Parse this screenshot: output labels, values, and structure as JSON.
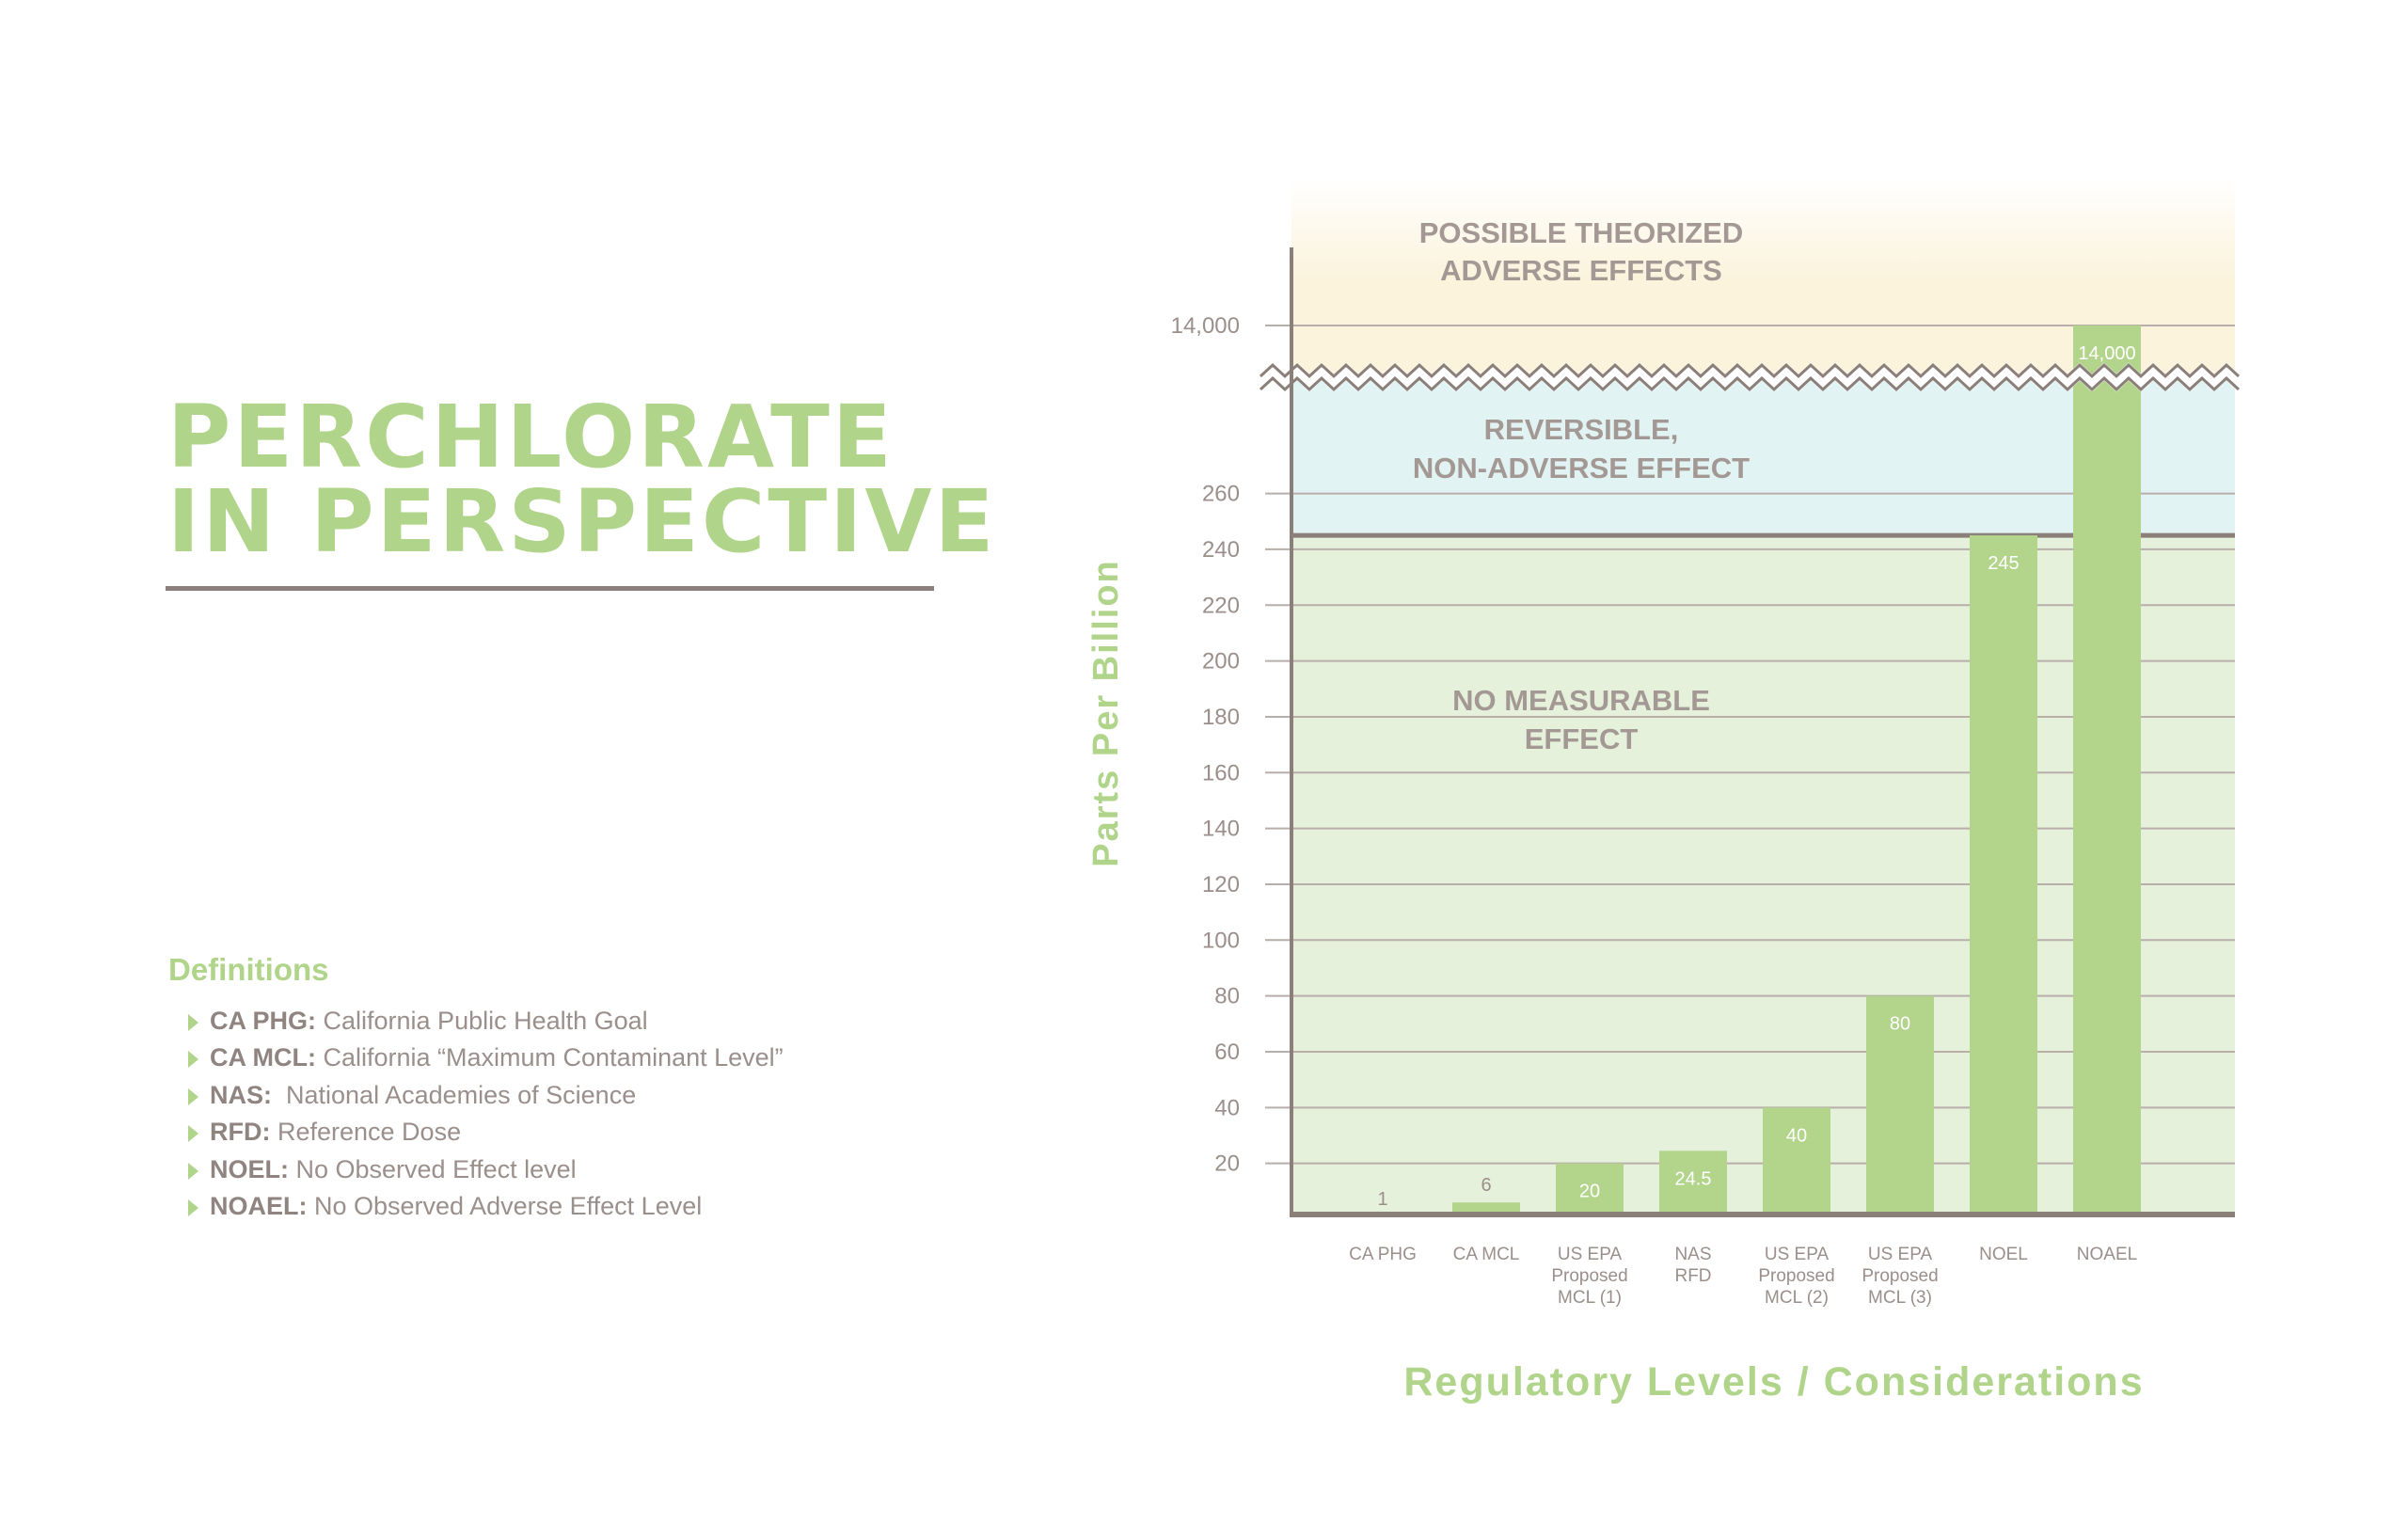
{
  "title": {
    "line1": "PERCHLORATE",
    "line2": "IN PERSPECTIVE"
  },
  "definitions": {
    "heading": "Definitions",
    "items": [
      {
        "term": "CA PHG:",
        "text": " California Public Health Goal"
      },
      {
        "term": "CA MCL:",
        "text": " California “Maximum Contaminant Level”"
      },
      {
        "term": "NAS:",
        "text": "  National Academies of Science"
      },
      {
        "term": "RFD:",
        "text": " Reference Dose"
      },
      {
        "term": "NOEL:",
        "text": " No Observed Effect level"
      },
      {
        "term": "NOAEL:",
        "text": " No Observed Adverse Effect Level"
      }
    ]
  },
  "colors": {
    "green": "#afd48a",
    "bar": "#b2d58b",
    "gray": "#9a8f8a",
    "axis": "#8b7f7a",
    "zone_green": "#e6f1dc",
    "zone_blue": "#e1f3f3",
    "zone_yellow": "#fbf3dc"
  },
  "chart_data": {
    "type": "bar",
    "ylabel": "Parts Per Billion",
    "xlabel": "Regulatory Levels / Considerations",
    "categories": [
      [
        "CA PHG"
      ],
      [
        "CA MCL"
      ],
      [
        "US EPA",
        "Proposed",
        "MCL (1)"
      ],
      [
        "NAS",
        "RFD"
      ],
      [
        "US EPA",
        "Proposed",
        "MCL (2)"
      ],
      [
        "US EPA",
        "Proposed",
        "MCL (3)"
      ],
      [
        "NOEL"
      ],
      [
        "NOAEL"
      ]
    ],
    "values": [
      1,
      6,
      20,
      24.5,
      40,
      80,
      245,
      14000
    ],
    "value_labels": [
      "1",
      "6",
      "20",
      "24.5",
      "40",
      "80",
      "245",
      "14,000"
    ],
    "yticks": [
      20,
      40,
      60,
      80,
      100,
      120,
      140,
      160,
      180,
      200,
      220,
      240,
      260
    ],
    "ytick_break": {
      "value": 14000,
      "label": "14,000"
    },
    "ylim": [
      0,
      260
    ],
    "axis_break": true,
    "zones": [
      {
        "name": "no-measurable-effect",
        "lines": [
          "NO MEASURABLE",
          "EFFECT"
        ],
        "range": [
          0,
          245
        ]
      },
      {
        "name": "reversible-non-adverse",
        "lines": [
          "REVERSIBLE,",
          "NON-ADVERSE EFFECT"
        ],
        "range": [
          245,
          "break"
        ]
      },
      {
        "name": "possible-adverse",
        "lines": [
          "POSSIBLE THEORIZED",
          "ADVERSE EFFECTS"
        ],
        "range": [
          "break",
          14000
        ]
      }
    ]
  }
}
